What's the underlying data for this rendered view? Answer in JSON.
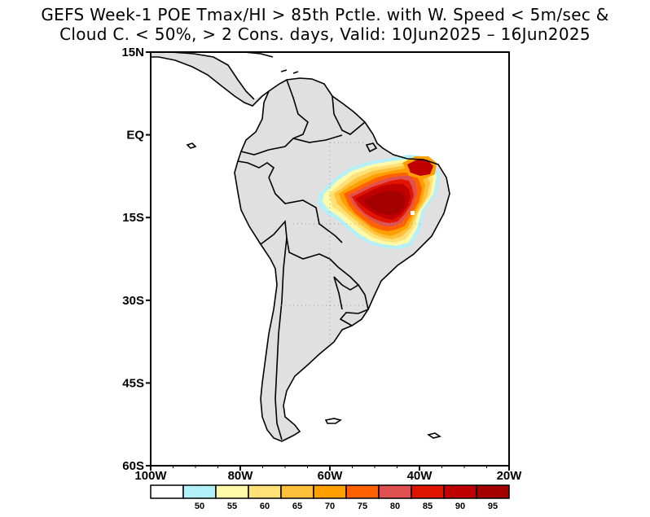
{
  "title": {
    "line1": "GEFS Week-1 POE Tmax/HI > 85th Pctle. with W. Speed < 5m/sec &",
    "line2": "Cloud C. < 50%, > 2 Cons. days, Valid: 10Jun2025 – 16Jun2025"
  },
  "map": {
    "lon_range": [
      -100,
      -20
    ],
    "lat_range": [
      -60,
      15
    ],
    "land_fill": "#e0e0e0",
    "border_color": "#000000",
    "grid_style": "dotted",
    "lat_labels": [
      "15N",
      "EQ",
      "15S",
      "30S",
      "45S",
      "60S"
    ],
    "lon_labels": [
      "100W",
      "80W",
      "60W",
      "40W",
      "20W"
    ]
  },
  "colorbar": {
    "bins": [
      {
        "color": "#ffffff"
      },
      {
        "color": "#b4f0fa",
        "label": "50"
      },
      {
        "color": "#fffaaa",
        "label": "55"
      },
      {
        "color": "#ffe178",
        "label": "60"
      },
      {
        "color": "#ffc03c",
        "label": "65"
      },
      {
        "color": "#ffa000",
        "label": "70"
      },
      {
        "color": "#ff6000",
        "label": "75"
      },
      {
        "color": "#e15050",
        "label": "80"
      },
      {
        "color": "#e11400",
        "label": "85"
      },
      {
        "color": "#c00000",
        "label": "90"
      },
      {
        "color": "#a50000",
        "label": "95"
      }
    ]
  }
}
